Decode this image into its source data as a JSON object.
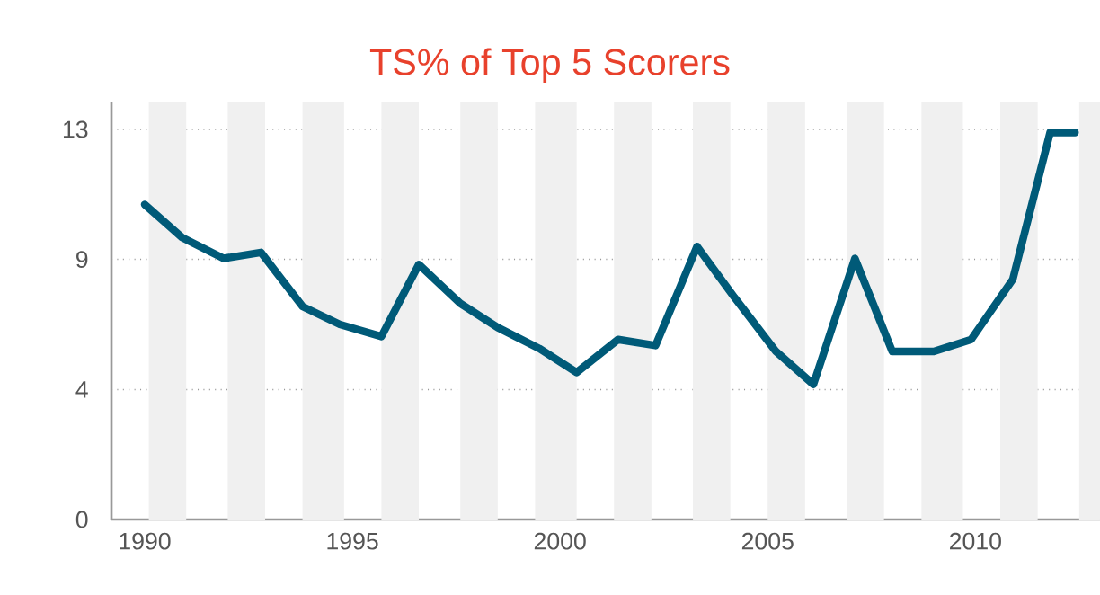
{
  "chart_data": {
    "type": "line",
    "title": "TS% of Top 5 Scorers",
    "x": [
      1990.0,
      1990.9,
      1991.9,
      1992.8,
      1993.8,
      1994.7,
      1995.7,
      1996.6,
      1997.6,
      1998.5,
      1999.5,
      2000.4,
      2001.4,
      2002.3,
      2003.3,
      2004.2,
      2005.2,
      2006.1,
      2007.1,
      2008.0,
      2009.0,
      2009.9,
      2010.9,
      2011.8,
      2012.4
    ],
    "series": [
      {
        "color": "#005a78",
        "values": [
          10.5,
          9.4,
          8.7,
          8.9,
          7.1,
          6.5,
          6.1,
          8.5,
          7.2,
          6.4,
          5.7,
          4.9,
          6.0,
          5.8,
          9.1,
          7.4,
          5.6,
          4.5,
          8.7,
          5.6,
          5.6,
          6.0,
          8.0,
          12.9,
          12.9
        ]
      }
    ],
    "xlim": [
      1989.2,
      2013.0
    ],
    "xticks": [
      1990,
      1995,
      2000,
      2005,
      2010
    ],
    "ylim": [
      0,
      13.9
    ],
    "yticks": [
      0,
      {
        "value": 4.33,
        "label": "4"
      },
      {
        "value": 8.67,
        "label": "9"
      },
      13
    ],
    "grid": "y",
    "legend": false,
    "marker": "none",
    "line_style": "solid",
    "bands": [
      {
        "axis": "x",
        "from": 1990.1,
        "to": 1991.0,
        "color": "#f0f0f0"
      },
      {
        "axis": "x",
        "from": 1992.0,
        "to": 1992.9,
        "color": "#f0f0f0"
      },
      {
        "axis": "x",
        "from": 1993.8,
        "to": 1994.8,
        "color": "#f0f0f0"
      },
      {
        "axis": "x",
        "from": 1995.7,
        "to": 1996.6,
        "color": "#f0f0f0"
      },
      {
        "axis": "x",
        "from": 1997.6,
        "to": 1998.5,
        "color": "#f0f0f0"
      },
      {
        "axis": "x",
        "from": 1999.4,
        "to": 2000.4,
        "color": "#f0f0f0"
      },
      {
        "axis": "x",
        "from": 2001.3,
        "to": 2002.2,
        "color": "#f0f0f0"
      },
      {
        "axis": "x",
        "from": 2003.2,
        "to": 2004.1,
        "color": "#f0f0f0"
      },
      {
        "axis": "x",
        "from": 2005.0,
        "to": 2005.9,
        "color": "#f0f0f0"
      },
      {
        "axis": "x",
        "from": 2006.9,
        "to": 2007.8,
        "color": "#f0f0f0"
      },
      {
        "axis": "x",
        "from": 2008.7,
        "to": 2009.7,
        "color": "#f0f0f0"
      },
      {
        "axis": "x",
        "from": 2010.6,
        "to": 2011.5,
        "color": "#f0f0f0"
      },
      {
        "axis": "x",
        "from": 2012.5,
        "to": 2013.0,
        "color": "#f0f0f0"
      }
    ]
  }
}
